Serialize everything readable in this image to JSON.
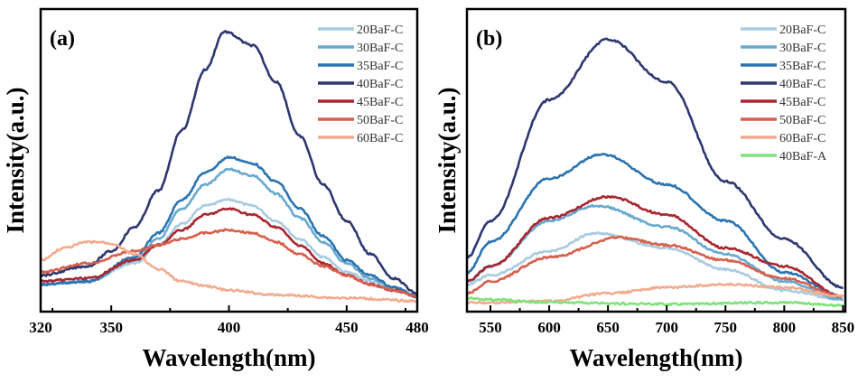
{
  "chart_data": [
    {
      "type": "line",
      "panel_label": "(a)",
      "xlabel": "Wavelength(nm)",
      "ylabel": "Intensity(a.u.)",
      "xlim": [
        320,
        480
      ],
      "ylim": [
        0,
        1
      ],
      "xticks": [
        320,
        350,
        400,
        450,
        480
      ],
      "grid": false,
      "legend": "top-right",
      "series": [
        {
          "name": "20BaF-C",
          "color": "#a9cbe0",
          "x": [
            320,
            340,
            360,
            370,
            380,
            390,
            400,
            410,
            420,
            430,
            440,
            450,
            460,
            470,
            480
          ],
          "y": [
            0.09,
            0.1,
            0.16,
            0.22,
            0.29,
            0.35,
            0.37,
            0.35,
            0.3,
            0.24,
            0.18,
            0.13,
            0.1,
            0.07,
            0.05
          ]
        },
        {
          "name": "30BaF-C",
          "color": "#67a9cf",
          "x": [
            320,
            340,
            360,
            370,
            380,
            390,
            400,
            410,
            420,
            430,
            440,
            450,
            460,
            470,
            480
          ],
          "y": [
            0.09,
            0.1,
            0.17,
            0.24,
            0.34,
            0.42,
            0.47,
            0.45,
            0.39,
            0.31,
            0.23,
            0.16,
            0.11,
            0.08,
            0.05
          ]
        },
        {
          "name": "35BaF-C",
          "color": "#2b74b0",
          "x": [
            320,
            340,
            360,
            370,
            380,
            390,
            400,
            410,
            420,
            430,
            440,
            450,
            460,
            470,
            480
          ],
          "y": [
            0.09,
            0.1,
            0.18,
            0.26,
            0.37,
            0.46,
            0.51,
            0.49,
            0.43,
            0.34,
            0.25,
            0.17,
            0.12,
            0.08,
            0.05
          ]
        },
        {
          "name": "40BaF-C",
          "color": "#2f3770",
          "x": [
            320,
            340,
            350,
            360,
            370,
            380,
            390,
            398,
            410,
            420,
            430,
            440,
            450,
            460,
            470,
            480
          ],
          "y": [
            0.12,
            0.15,
            0.2,
            0.28,
            0.4,
            0.6,
            0.8,
            0.925,
            0.88,
            0.76,
            0.58,
            0.42,
            0.3,
            0.19,
            0.11,
            0.06
          ]
        },
        {
          "name": "45BaF-C",
          "color": "#a8262f",
          "x": [
            320,
            340,
            360,
            370,
            380,
            390,
            400,
            410,
            420,
            430,
            440,
            450,
            460,
            470,
            480
          ],
          "y": [
            0.1,
            0.11,
            0.17,
            0.22,
            0.27,
            0.32,
            0.34,
            0.32,
            0.28,
            0.22,
            0.16,
            0.12,
            0.09,
            0.07,
            0.05
          ]
        },
        {
          "name": "50BaF-C",
          "color": "#d6604d",
          "x": [
            320,
            340,
            360,
            370,
            380,
            390,
            400,
            410,
            420,
            430,
            440,
            450,
            460,
            470,
            480
          ],
          "y": [
            0.13,
            0.16,
            0.2,
            0.22,
            0.24,
            0.26,
            0.27,
            0.26,
            0.23,
            0.19,
            0.15,
            0.12,
            0.09,
            0.07,
            0.05
          ]
        },
        {
          "name": "60BaF-C",
          "color": "#f2ab8f",
          "x": [
            320,
            330,
            340,
            345,
            350,
            360,
            370,
            380,
            390,
            400,
            420,
            450,
            480
          ],
          "y": [
            0.17,
            0.21,
            0.23,
            0.23,
            0.225,
            0.19,
            0.14,
            0.1,
            0.085,
            0.07,
            0.055,
            0.045,
            0.035
          ]
        }
      ]
    },
    {
      "type": "line",
      "panel_label": "(b)",
      "xlabel": "Wavelength(nm)",
      "ylabel": "Intensity(a.u.)",
      "xlim": [
        530,
        852
      ],
      "ylim": [
        0,
        1
      ],
      "xticks": [
        550,
        600,
        650,
        700,
        750,
        800,
        850
      ],
      "grid": false,
      "legend": "top-right",
      "series": [
        {
          "name": "20BaF-C",
          "color": "#a9cbe0",
          "x": [
            530,
            550,
            600,
            640,
            700,
            750,
            800,
            850
          ],
          "y": [
            0.09,
            0.12,
            0.2,
            0.26,
            0.21,
            0.14,
            0.07,
            0.04
          ]
        },
        {
          "name": "30BaF-C",
          "color": "#67a9cf",
          "x": [
            530,
            550,
            600,
            640,
            700,
            750,
            800,
            850
          ],
          "y": [
            0.1,
            0.15,
            0.3,
            0.35,
            0.28,
            0.19,
            0.1,
            0.04
          ]
        },
        {
          "name": "35BaF-C",
          "color": "#2b74b0",
          "x": [
            530,
            550,
            600,
            645,
            700,
            750,
            800,
            850
          ],
          "y": [
            0.13,
            0.23,
            0.44,
            0.52,
            0.42,
            0.3,
            0.13,
            0.05
          ]
        },
        {
          "name": "40BaF-C",
          "color": "#2f3770",
          "x": [
            530,
            550,
            600,
            650,
            700,
            750,
            800,
            850
          ],
          "y": [
            0.18,
            0.3,
            0.7,
            0.9,
            0.76,
            0.43,
            0.24,
            0.08
          ]
        },
        {
          "name": "45BaF-C",
          "color": "#a8262f",
          "x": [
            530,
            550,
            600,
            650,
            700,
            750,
            800,
            850
          ],
          "y": [
            0.1,
            0.15,
            0.31,
            0.38,
            0.32,
            0.21,
            0.15,
            0.05
          ]
        },
        {
          "name": "50BaF-C",
          "color": "#d6604d",
          "x": [
            530,
            550,
            600,
            660,
            700,
            750,
            800,
            850
          ],
          "y": [
            0.06,
            0.1,
            0.18,
            0.245,
            0.22,
            0.17,
            0.11,
            0.05
          ]
        },
        {
          "name": "60BaF-C",
          "color": "#f2ab8f",
          "x": [
            530,
            550,
            600,
            650,
            700,
            750,
            800,
            850
          ],
          "y": [
            0.03,
            0.03,
            0.035,
            0.06,
            0.08,
            0.09,
            0.08,
            0.05
          ]
        },
        {
          "name": "40BaF-A",
          "color": "#7fe27a",
          "x": [
            530,
            550,
            600,
            700,
            800,
            850
          ],
          "y": [
            0.045,
            0.04,
            0.03,
            0.025,
            0.03,
            0.02
          ]
        }
      ]
    }
  ]
}
